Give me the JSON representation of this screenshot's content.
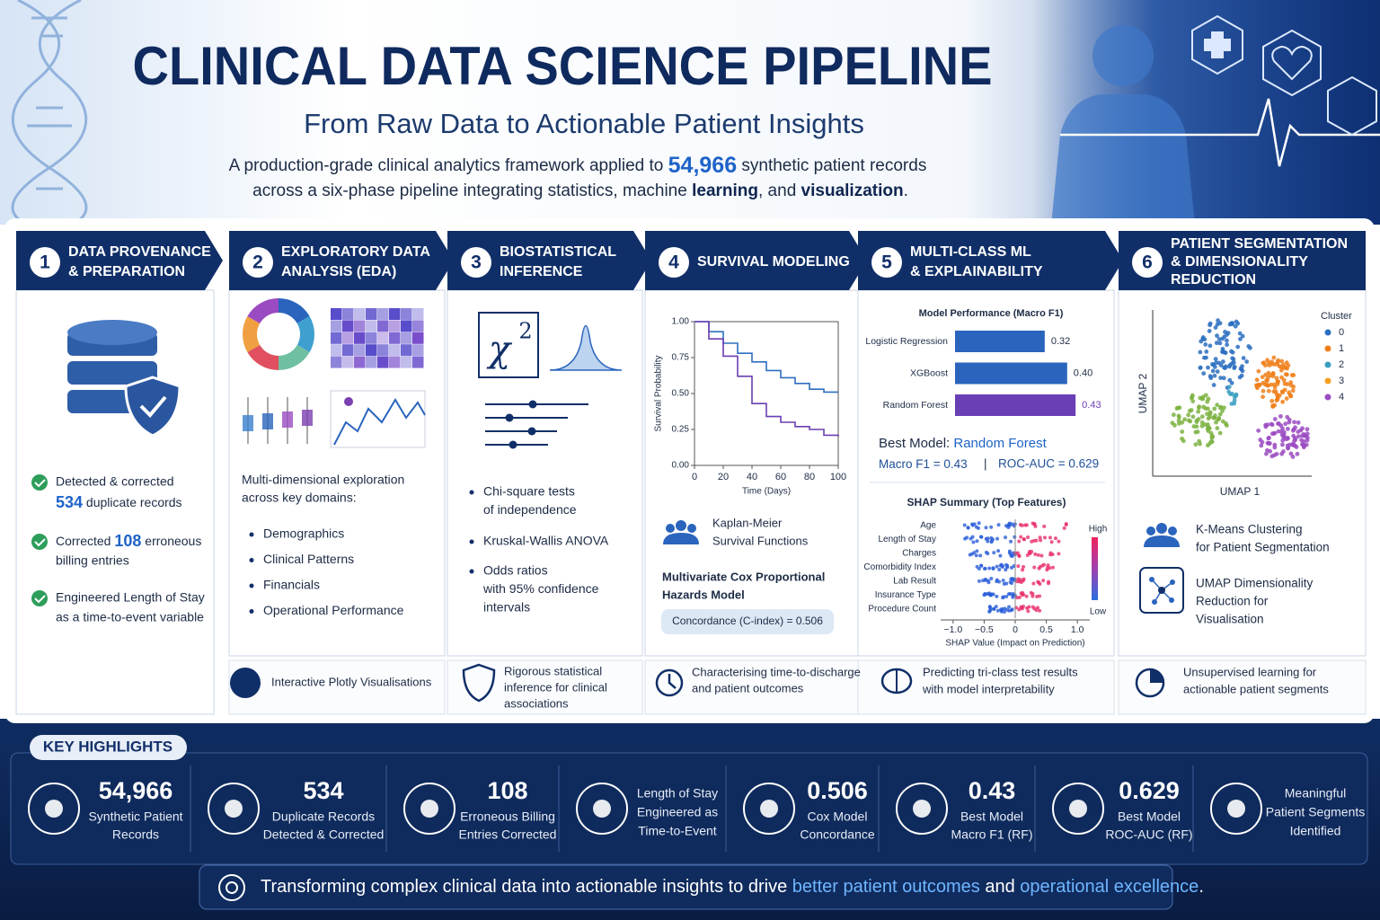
{
  "header": {
    "title": "CLINICAL DATA SCIENCE PIPELINE",
    "subtitle": "From Raw Data to Actionable Patient Insights",
    "description": {
      "line1": [
        "A production-grade clinical analytics framework applied to ",
        "54,966",
        " synthetic patient records"
      ],
      "line2": [
        "across a six-phase pipeline integrating statistics, machine ",
        "learning",
        ", and ",
        "visualization",
        "."
      ]
    }
  },
  "phases": [
    {
      "number": "1",
      "title": [
        "DATA PROVENANCE",
        "& PREPARATION"
      ],
      "items": [
        {
          "line1": "Detected & corrected",
          "number": "534",
          "after": " duplicate records"
        },
        {
          "before": "Corrected ",
          "number": "108",
          "after": " erroneous",
          "line2": "billing entries"
        },
        {
          "lines": [
            "Engineered Length of Stay",
            "as a time-to-event variable"
          ]
        }
      ]
    },
    {
      "number": "2",
      "title": [
        "EXPLORATORY DATA",
        "ANALYSIS (EDA)"
      ],
      "intro": [
        "Multi-dimensional exploration",
        "across key domains:"
      ],
      "bullets": [
        "Demographics",
        "Clinical Patterns",
        "Financials",
        "Operational Performance"
      ],
      "footer": [
        "Interactive Plotly Visualisations"
      ]
    },
    {
      "number": "3",
      "title": [
        "BIOSTATISTICAL",
        "INFERENCE"
      ],
      "symbol": "χ",
      "exponent": "2",
      "bullets": [
        [
          "Chi-square tests",
          "of independence"
        ],
        [
          "Kruskal-Wallis ANOVA"
        ],
        [
          "Odds ratios",
          "with 95% confidence",
          "intervals"
        ]
      ],
      "footer": [
        "Rigorous statistical",
        "inference for clinical",
        "associations"
      ]
    },
    {
      "number": "4",
      "title": [
        "SURVIVAL MODELING"
      ],
      "chart": {
        "type": "line",
        "x_label": "Time (Days)",
        "y_label": "Survival Probability",
        "x": [
          0,
          10,
          20,
          30,
          40,
          50,
          60,
          70,
          80,
          90,
          100
        ],
        "series": [
          {
            "color": "#2f6fc0",
            "values": [
              1.0,
              0.93,
              0.85,
              0.78,
              0.72,
              0.66,
              0.61,
              0.57,
              0.53,
              0.51,
              0.51
            ]
          },
          {
            "color": "#6a3fb0",
            "values": [
              1.0,
              0.88,
              0.76,
              0.62,
              0.43,
              0.34,
              0.3,
              0.27,
              0.25,
              0.21,
              0.2
            ]
          }
        ],
        "xlim": [
          0,
          100
        ],
        "ylim": [
          0,
          1
        ],
        "xticks": [
          0,
          20,
          40,
          60,
          80,
          100
        ],
        "yticks": [
          {
            "value": 0,
            "label": "0.00"
          },
          {
            "value": 0.25,
            "label": "0.25"
          },
          {
            "value": 0.5,
            "label": "0.50"
          },
          {
            "value": 0.75,
            "label": "0.75"
          },
          {
            "value": 1,
            "label": "1.00"
          }
        ]
      },
      "method": [
        "Kaplan-Meier",
        "Survival Functions"
      ],
      "cox": [
        "Multivariate Cox Proportional",
        "Hazards Model"
      ],
      "concordance": "Concordance (C-index) = 0.506",
      "footer": [
        "Characterising time-to-discharge",
        "and patient outcomes"
      ]
    },
    {
      "number": "5",
      "title": [
        "MULTI-CLASS ML",
        "& EXPLAINABILITY"
      ],
      "performance": {
        "type": "bar",
        "title": "Model Performance (Macro F1)",
        "categories": [
          "Logistic Regression",
          "XGBoost",
          "Random Forest"
        ],
        "values": [
          0.32,
          0.4,
          0.43
        ],
        "value_labels": [
          "0.32",
          "0.40",
          "0.43"
        ],
        "colors": [
          "#2a64bd",
          "#2a64bd",
          "#6a3fb5"
        ],
        "xlim": [
          0,
          0.5
        ]
      },
      "best_model": {
        "label": "Best Model: ",
        "name": "Random Forest",
        "macro_f1": "Macro F1 = 0.43",
        "separator": "|",
        "roc_auc": "ROC-AUC = 0.629"
      },
      "shap": {
        "title": "SHAP Summary (Top Features)",
        "features": [
          "Age",
          "Length of Stay",
          "Charges",
          "Comorbidity Index",
          "Lab Result",
          "Insurance Type",
          "Procedure Count"
        ],
        "high": "High",
        "low": "Low",
        "x_label": "SHAP Value (Impact on Prediction)",
        "xlim": [
          -1.2,
          1.2
        ],
        "xticks": [
          {
            "value": -1,
            "label": "−1.0"
          },
          {
            "value": -0.5,
            "label": "−0.5"
          },
          0,
          0.5,
          {
            "value": 1,
            "label": "1.0"
          }
        ]
      },
      "footer": [
        "Predicting tri-class test results",
        "with model interpretability"
      ]
    },
    {
      "number": "6",
      "title": [
        "PATIENT SEGMENTATION",
        "& DIMENSIONALITY",
        "REDUCTION"
      ],
      "scatter": {
        "x_label": "UMAP 1",
        "y_label": "UMAP 2",
        "legend_title": "Cluster",
        "clusters": [
          {
            "name": "0",
            "color": "#2b6fc0"
          },
          {
            "name": "1",
            "color": "#f07f1a"
          },
          {
            "name": "2",
            "color": "#3a9fc0"
          },
          {
            "name": "3",
            "color": "#f5a020"
          },
          {
            "name": "4",
            "color": "#9b4bc2"
          }
        ]
      },
      "methods": [
        [
          "K-Means Clustering",
          "for Patient Segmentation"
        ],
        [
          "UMAP Dimensionality",
          "Reduction for",
          "Visualisation"
        ]
      ],
      "footer": [
        "Unsupervised learning for",
        "actionable patient segments"
      ]
    }
  ],
  "highlights": {
    "title": "KEY HIGHLIGHTS",
    "items": [
      {
        "value": "54,966",
        "label": [
          "Synthetic Patient",
          "Records"
        ]
      },
      {
        "value": "534",
        "label": [
          "Duplicate Records",
          "Detected & Corrected"
        ]
      },
      {
        "value": "108",
        "label": [
          "Erroneous Billing",
          "Entries Corrected"
        ]
      },
      {
        "label": [
          "Length of Stay",
          "Engineered as",
          "Time-to-Event"
        ]
      },
      {
        "value": "0.506",
        "label": [
          "Cox Model",
          "Concordance"
        ]
      },
      {
        "value": "0.43",
        "label": [
          "Best Model",
          "Macro F1 (RF)"
        ]
      },
      {
        "value": "0.629",
        "label": [
          "Best Model",
          "ROC-AUC (RF)"
        ]
      },
      {
        "label": [
          "Meaningful",
          "Patient Segments",
          "Identified"
        ]
      }
    ]
  },
  "footer": [
    "Transforming complex clinical data into actionable insights to drive ",
    "better patient outcomes",
    " and ",
    "operational excellence",
    "."
  ]
}
